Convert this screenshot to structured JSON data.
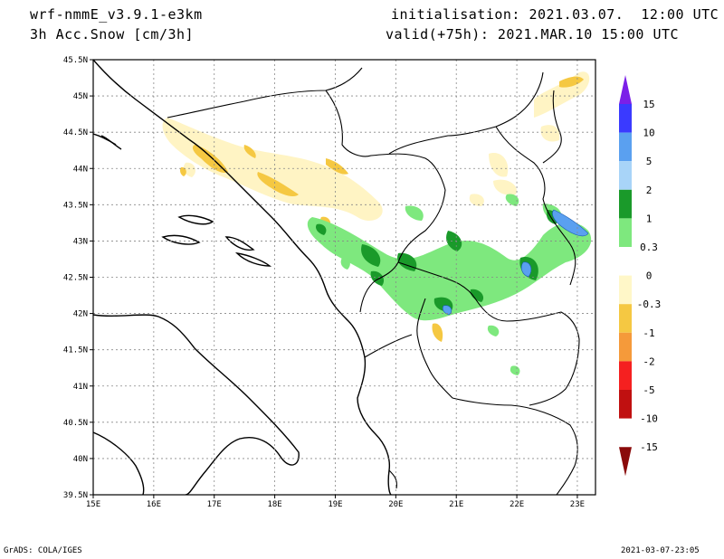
{
  "header": {
    "model": "wrf-nmmE_v3.9.1-e3km",
    "field": "3h Acc.Snow [cm/3h]",
    "init": "initialisation: 2021.03.07.  12:00 UTC",
    "valid": "valid(+75h): 2021.MAR.10 15:00 UTC"
  },
  "map": {
    "lat_labels": [
      "45.5N",
      "45N",
      "44.5N",
      "44N",
      "43.5N",
      "43N",
      "42.5N",
      "42N",
      "41.5N",
      "41N",
      "40.5N",
      "40N",
      "39.5N"
    ],
    "lon_labels": [
      "15E",
      "16E",
      "17E",
      "18E",
      "19E",
      "20E",
      "21E",
      "22E",
      "23E"
    ],
    "lat_range": [
      39.5,
      45.5
    ],
    "lon_range": [
      15,
      23.3
    ],
    "grid": "dotted"
  },
  "colorbar": {
    "labels": [
      "15",
      "10",
      "5",
      "2",
      "1",
      "0.3",
      "0",
      "-0.3",
      "-1",
      "-2",
      "-5",
      "-10",
      "-15"
    ],
    "colors": [
      "#7b1fe8",
      "#3a3aff",
      "#5aa0f0",
      "#a8d4f8",
      "#1a9a2a",
      "#7ee87e",
      "#ffffff",
      "#fff7c8",
      "#f5c842",
      "#f59a3a",
      "#f52020",
      "#c01010",
      "#8a0a0a"
    ]
  },
  "footer": {
    "left": "GrADS: COLA/IGES",
    "right": "2021-03-07-23:05"
  }
}
